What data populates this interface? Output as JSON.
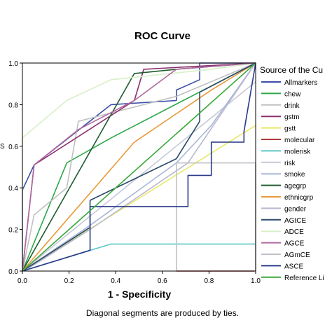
{
  "chart_data": {
    "type": "line",
    "title": "ROC Curve",
    "xlabel": "1 - Specificity",
    "ylabel_partial": "S",
    "footnote": "Diagonal segments are produced by ties.",
    "xlim": [
      0,
      1
    ],
    "ylim": [
      0,
      1
    ],
    "x_ticks": [
      "0.0",
      "0.2",
      "0.4",
      "0.6",
      "0.8",
      "1.0"
    ],
    "y_ticks": [
      "0.0",
      "0.2",
      "0.4",
      "0.6",
      "0.8",
      "1.0"
    ],
    "legend_title": "Source of the Cu",
    "legend_position": "right",
    "series": [
      {
        "name": "Allmarkers",
        "color": "#3a4fa8",
        "x": [
          0,
          0,
          0.05,
          0.38,
          0.66,
          0.66,
          0.76,
          0.76,
          1.0
        ],
        "y": [
          0,
          0.39,
          0.51,
          0.8,
          0.82,
          0.87,
          0.92,
          1.0,
          1.0
        ]
      },
      {
        "name": "chew",
        "color": "#2ea84a",
        "x": [
          0,
          0.19,
          0.38,
          1.0
        ],
        "y": [
          0,
          0.52,
          0.64,
          1.0
        ]
      },
      {
        "name": "drink",
        "color": "#c0c0c0",
        "x": [
          0,
          0.05,
          0.19,
          0.24,
          0.66,
          1.0
        ],
        "y": [
          0,
          0.27,
          0.4,
          0.72,
          0.84,
          1.0
        ]
      },
      {
        "name": "gstm",
        "color": "#8a2e6e",
        "x": [
          0,
          0.05,
          0.48,
          0.52,
          1.0
        ],
        "y": [
          0,
          0.51,
          0.82,
          0.97,
          1.0
        ]
      },
      {
        "name": "gstt",
        "color": "#e8e86a",
        "x": [
          0,
          1.0
        ],
        "y": [
          0,
          0.7
        ]
      },
      {
        "name": "molecular",
        "color": "#b23a3a",
        "x": [
          0.66,
          0.66,
          0.995,
          0.995
        ],
        "y": [
          0,
          0.0,
          0.0,
          0.0
        ]
      },
      {
        "name": "molerisk",
        "color": "#5cc8c8",
        "x": [
          0,
          0.38,
          1.0
        ],
        "y": [
          0,
          0.13,
          0.13
        ]
      },
      {
        "name": "risk",
        "color": "#c8c8dc",
        "x": [
          0,
          1.0
        ],
        "y": [
          0,
          0.91
        ]
      },
      {
        "name": "smoke",
        "color": "#a8b8d8",
        "x": [
          0,
          0.29,
          0.66,
          0.81,
          1.0
        ],
        "y": [
          0,
          0.22,
          0.52,
          0.7,
          1.0
        ]
      },
      {
        "name": "agegrp",
        "color": "#1e5c2e",
        "x": [
          0,
          0.48,
          0.66,
          1.0
        ],
        "y": [
          0,
          0.95,
          0.97,
          1.0
        ]
      },
      {
        "name": "ethnicgrp",
        "color": "#e89a3a",
        "x": [
          0,
          0.48,
          0.81,
          1.0
        ],
        "y": [
          0,
          0.62,
          0.87,
          1.0
        ]
      },
      {
        "name": "gender",
        "color": "#b8b8d0",
        "x": [
          0,
          0.05,
          0.29,
          0.71,
          1.0
        ],
        "y": [
          0,
          0.03,
          0.2,
          0.52,
          1.0
        ]
      },
      {
        "name": "AGtCE",
        "color": "#2a4a6a",
        "x": [
          0,
          0.29,
          0.29,
          0.66,
          0.76,
          0.76,
          1.0
        ],
        "y": [
          0,
          0.21,
          0.34,
          0.54,
          0.72,
          0.86,
          1.0
        ]
      },
      {
        "name": "ADCE",
        "color": "#d8f0c8",
        "x": [
          0,
          0,
          0.19,
          0.38,
          0.81,
          1.0
        ],
        "y": [
          0,
          0.64,
          0.82,
          0.92,
          0.97,
          1.0
        ]
      },
      {
        "name": "AGCE",
        "color": "#b06aa0",
        "x": [
          0,
          0.05,
          0.24,
          0.48,
          0.66,
          1.0
        ],
        "y": [
          0,
          0.51,
          0.68,
          0.82,
          0.97,
          1.0
        ]
      },
      {
        "name": "AGmCE",
        "color": "#c0c0c8",
        "x": [
          0.66,
          0.66,
          1.0,
          1.0
        ],
        "y": [
          0,
          0.52,
          0.52,
          0.0
        ]
      },
      {
        "name": "ASCE",
        "color": "#2a3a8a",
        "x": [
          0,
          0.29,
          0.29,
          0.71,
          0.71,
          0.81,
          0.81,
          0.95,
          0.95,
          1.0
        ],
        "y": [
          0,
          0.1,
          0.31,
          0.31,
          0.46,
          0.46,
          0.62,
          0.62,
          0.67,
          1.0
        ]
      },
      {
        "name": "Reference Li",
        "color": "#3aa83a",
        "x": [
          0,
          1.0
        ],
        "y": [
          0,
          1.0
        ]
      }
    ]
  }
}
